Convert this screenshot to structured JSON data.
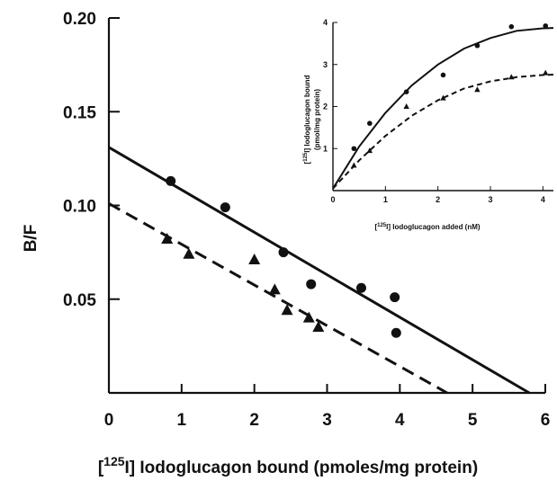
{
  "chart_data": [
    {
      "type": "scatter",
      "title": "",
      "xlabel_sup": "125",
      "xlabel_pre": "[",
      "xlabel_post": "I] Iodoglucagon bound (pmoles/mg protein)",
      "ylabel": "B/F",
      "xlim": [
        0,
        6
      ],
      "ylim": [
        0,
        0.2
      ],
      "x_ticks": [
        "0",
        "1",
        "2",
        "3",
        "4",
        "5",
        "6"
      ],
      "y_ticks": [
        "0.05",
        "0.10",
        "0.15",
        "0.20"
      ],
      "y_tick_values": [
        0.05,
        0.1,
        0.15,
        0.2
      ],
      "series": [
        {
          "marker": "circle",
          "line_style": "solid",
          "points": [
            [
              0.85,
              0.113
            ],
            [
              1.6,
              0.099
            ],
            [
              2.4,
              0.075
            ],
            [
              2.78,
              0.058
            ],
            [
              3.47,
              0.056
            ],
            [
              3.93,
              0.051
            ],
            [
              3.95,
              0.032
            ]
          ],
          "fit": [
            [
              0,
              0.131
            ],
            [
              5.78,
              0
            ]
          ]
        },
        {
          "marker": "triangle",
          "line_style": "dashed",
          "points": [
            [
              0.8,
              0.082
            ],
            [
              1.1,
              0.074
            ],
            [
              2.0,
              0.071
            ],
            [
              2.28,
              0.055
            ],
            [
              2.45,
              0.044
            ],
            [
              2.75,
              0.04
            ],
            [
              2.88,
              0.035
            ]
          ],
          "fit": [
            [
              0,
              0.101
            ],
            [
              4.65,
              0
            ]
          ]
        }
      ]
    },
    {
      "type": "scatter",
      "title": "",
      "xlabel_sup": "125",
      "xlabel_pre": "[",
      "xlabel_post": "I]  Iodoglucagon added (nM)",
      "ylabel_sup": "125",
      "ylabel_pre": "[",
      "ylabel_post": "I] Iodoglucagon bound",
      "ylabel_line2": "(pmol/mg protein)",
      "xlim": [
        0,
        4.2
      ],
      "ylim": [
        0,
        4
      ],
      "x_ticks": [
        "0",
        "1",
        "2",
        "3",
        "4"
      ],
      "y_ticks": [
        "1",
        "2",
        "3",
        "4"
      ],
      "series": [
        {
          "marker": "circle",
          "line_style": "solid",
          "points": [
            [
              0.4,
              1.0
            ],
            [
              0.7,
              1.6
            ],
            [
              1.4,
              2.35
            ],
            [
              2.1,
              2.75
            ],
            [
              2.75,
              3.45
            ],
            [
              3.4,
              3.9
            ],
            [
              4.05,
              3.92
            ]
          ],
          "curve": [
            [
              0,
              0.05
            ],
            [
              0.5,
              1.05
            ],
            [
              1.0,
              1.85
            ],
            [
              1.5,
              2.5
            ],
            [
              2.0,
              3.0
            ],
            [
              2.5,
              3.38
            ],
            [
              3.0,
              3.63
            ],
            [
              3.5,
              3.8
            ],
            [
              4.0,
              3.86
            ],
            [
              4.2,
              3.87
            ]
          ]
        },
        {
          "marker": "triangle",
          "line_style": "dashed",
          "points": [
            [
              0.4,
              0.6
            ],
            [
              0.7,
              0.95
            ],
            [
              1.4,
              2.0
            ],
            [
              2.1,
              2.2
            ],
            [
              2.75,
              2.4
            ],
            [
              3.4,
              2.7
            ],
            [
              4.05,
              2.8
            ]
          ],
          "curve": [
            [
              0,
              0.05
            ],
            [
              0.5,
              0.72
            ],
            [
              1.0,
              1.3
            ],
            [
              1.5,
              1.78
            ],
            [
              2.0,
              2.15
            ],
            [
              2.5,
              2.43
            ],
            [
              3.0,
              2.6
            ],
            [
              3.5,
              2.7
            ],
            [
              4.0,
              2.75
            ],
            [
              4.2,
              2.76
            ]
          ]
        }
      ]
    }
  ]
}
